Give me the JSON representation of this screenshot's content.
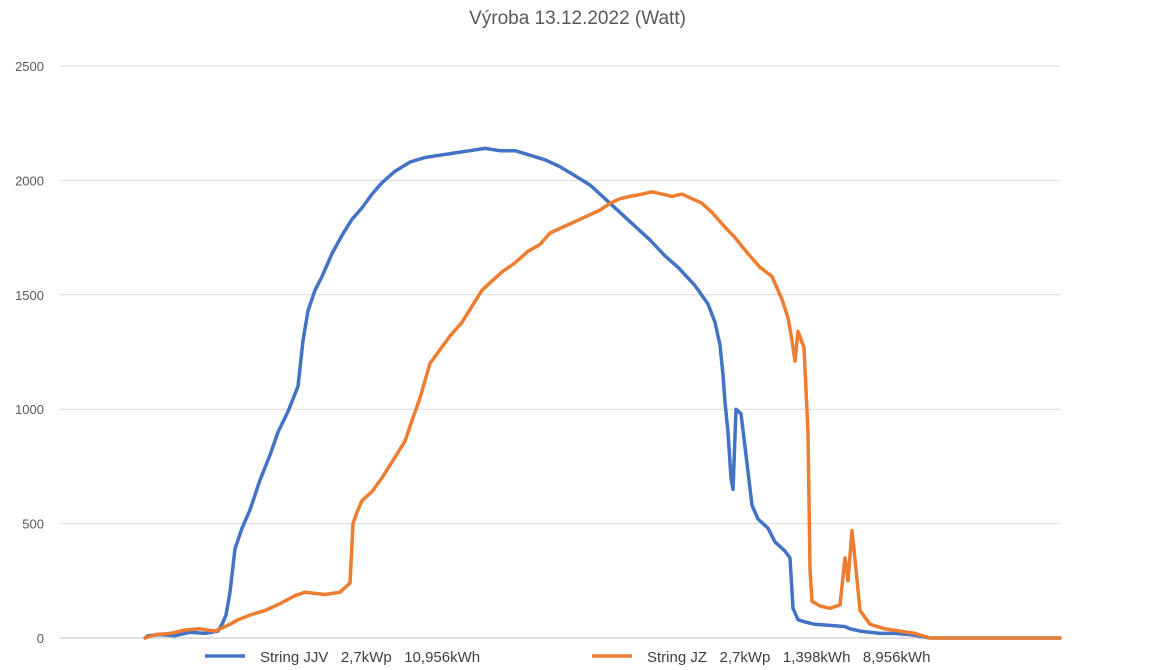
{
  "chart_data": {
    "type": "line",
    "title": "Výroba 13.12.2022 (Watt)",
    "xlabel": "",
    "ylabel": "",
    "ylim": [
      0,
      2500
    ],
    "yticks": [
      0,
      500,
      1000,
      1500,
      2000,
      2500
    ],
    "xlim": [
      0,
      1000
    ],
    "grid": true,
    "legend_position": "bottom",
    "series": [
      {
        "name": "String JJV   2,7kWp   10,956kWh",
        "color": "#4472C4",
        "points": [
          [
            85,
            0
          ],
          [
            88,
            10
          ],
          [
            100,
            15
          ],
          [
            115,
            10
          ],
          [
            130,
            25
          ],
          [
            145,
            20
          ],
          [
            158,
            30
          ],
          [
            162,
            60
          ],
          [
            166,
            100
          ],
          [
            170,
            200
          ],
          [
            175,
            390
          ],
          [
            182,
            480
          ],
          [
            190,
            560
          ],
          [
            200,
            690
          ],
          [
            210,
            800
          ],
          [
            218,
            900
          ],
          [
            228,
            990
          ],
          [
            238,
            1100
          ],
          [
            243,
            1300
          ],
          [
            248,
            1430
          ],
          [
            255,
            1520
          ],
          [
            262,
            1580
          ],
          [
            272,
            1680
          ],
          [
            282,
            1760
          ],
          [
            292,
            1830
          ],
          [
            302,
            1880
          ],
          [
            312,
            1940
          ],
          [
            322,
            1990
          ],
          [
            335,
            2040
          ],
          [
            350,
            2080
          ],
          [
            365,
            2100
          ],
          [
            380,
            2110
          ],
          [
            395,
            2120
          ],
          [
            410,
            2130
          ],
          [
            425,
            2140
          ],
          [
            440,
            2130
          ],
          [
            455,
            2130
          ],
          [
            470,
            2110
          ],
          [
            485,
            2090
          ],
          [
            500,
            2060
          ],
          [
            515,
            2020
          ],
          [
            530,
            1980
          ],
          [
            545,
            1920
          ],
          [
            560,
            1860
          ],
          [
            575,
            1800
          ],
          [
            590,
            1740
          ],
          [
            605,
            1670
          ],
          [
            618,
            1620
          ],
          [
            635,
            1540
          ],
          [
            648,
            1460
          ],
          [
            655,
            1380
          ],
          [
            660,
            1280
          ],
          [
            663,
            1150
          ],
          [
            665,
            1030
          ],
          [
            668,
            900
          ],
          [
            671,
            700
          ],
          [
            673,
            650
          ],
          [
            676,
            1000
          ],
          [
            681,
            980
          ],
          [
            686,
            800
          ],
          [
            692,
            580
          ],
          [
            698,
            520
          ],
          [
            708,
            480
          ],
          [
            715,
            420
          ],
          [
            725,
            380
          ],
          [
            730,
            350
          ],
          [
            733,
            130
          ],
          [
            738,
            80
          ],
          [
            745,
            70
          ],
          [
            755,
            60
          ],
          [
            770,
            55
          ],
          [
            785,
            50
          ],
          [
            790,
            40
          ],
          [
            800,
            30
          ],
          [
            820,
            20
          ],
          [
            835,
            20
          ],
          [
            850,
            15
          ],
          [
            857,
            10
          ],
          [
            870,
            0
          ],
          [
            1000,
            0
          ]
        ]
      },
      {
        "name": "String JZ   2,7kWp   1,398kWh   8,956kWh",
        "color": "#ED7D31",
        "points": [
          [
            85,
            0
          ],
          [
            95,
            15
          ],
          [
            110,
            20
          ],
          [
            125,
            35
          ],
          [
            140,
            40
          ],
          [
            155,
            30
          ],
          [
            170,
            60
          ],
          [
            178,
            80
          ],
          [
            190,
            100
          ],
          [
            205,
            120
          ],
          [
            220,
            150
          ],
          [
            235,
            185
          ],
          [
            245,
            200
          ],
          [
            265,
            190
          ],
          [
            280,
            200
          ],
          [
            290,
            240
          ],
          [
            293,
            500
          ],
          [
            297,
            550
          ],
          [
            302,
            600
          ],
          [
            312,
            640
          ],
          [
            322,
            700
          ],
          [
            335,
            790
          ],
          [
            345,
            860
          ],
          [
            352,
            950
          ],
          [
            360,
            1050
          ],
          [
            370,
            1200
          ],
          [
            380,
            1260
          ],
          [
            390,
            1320
          ],
          [
            402,
            1380
          ],
          [
            412,
            1450
          ],
          [
            422,
            1520
          ],
          [
            432,
            1560
          ],
          [
            442,
            1600
          ],
          [
            455,
            1640
          ],
          [
            468,
            1690
          ],
          [
            480,
            1720
          ],
          [
            490,
            1770
          ],
          [
            500,
            1790
          ],
          [
            510,
            1810
          ],
          [
            520,
            1830
          ],
          [
            530,
            1850
          ],
          [
            540,
            1870
          ],
          [
            550,
            1900
          ],
          [
            560,
            1920
          ],
          [
            570,
            1930
          ],
          [
            582,
            1940
          ],
          [
            592,
            1950
          ],
          [
            602,
            1940
          ],
          [
            612,
            1930
          ],
          [
            622,
            1940
          ],
          [
            632,
            1920
          ],
          [
            642,
            1900
          ],
          [
            652,
            1860
          ],
          [
            662,
            1810
          ],
          [
            675,
            1750
          ],
          [
            688,
            1680
          ],
          [
            700,
            1620
          ],
          [
            712,
            1580
          ],
          [
            722,
            1480
          ],
          [
            728,
            1400
          ],
          [
            732,
            1300
          ],
          [
            735,
            1210
          ],
          [
            738,
            1340
          ],
          [
            744,
            1270
          ],
          [
            748,
            900
          ],
          [
            750,
            300
          ],
          [
            752,
            160
          ],
          [
            760,
            140
          ],
          [
            770,
            130
          ],
          [
            780,
            145
          ],
          [
            785,
            350
          ],
          [
            788,
            250
          ],
          [
            792,
            470
          ],
          [
            796,
            300
          ],
          [
            800,
            120
          ],
          [
            810,
            60
          ],
          [
            825,
            40
          ],
          [
            840,
            30
          ],
          [
            855,
            20
          ],
          [
            870,
            0
          ],
          [
            1000,
            0
          ]
        ]
      }
    ]
  }
}
